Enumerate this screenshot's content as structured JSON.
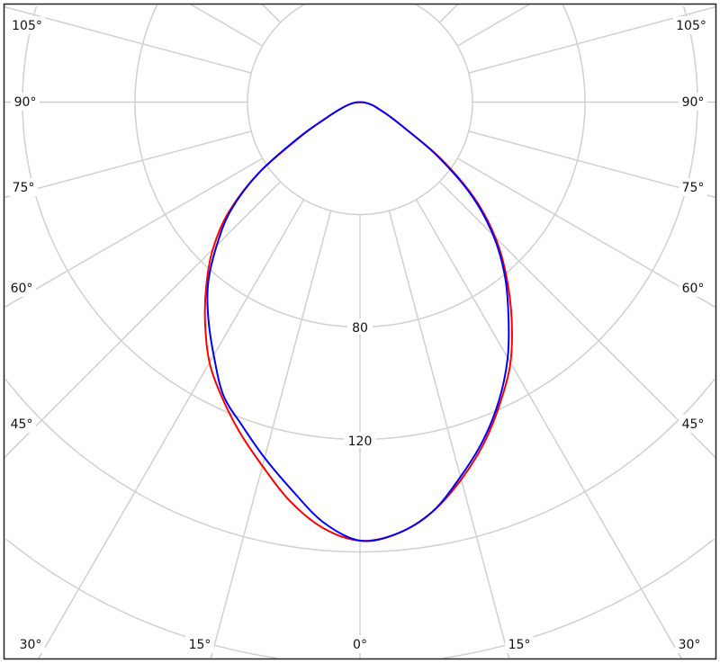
{
  "chart_data": {
    "type": "polar",
    "angle_zero": "bottom",
    "radial_range": [
      0,
      200
    ],
    "radial_ticks": [
      40,
      80,
      120,
      160,
      200
    ],
    "radial_tick_labels": [
      "80",
      "120"
    ],
    "angle_step_deg": 15,
    "grid": true,
    "angle_labels": {
      "left": [
        "105°",
        "90°",
        "75°",
        "60°",
        "45°"
      ],
      "bottom": [
        "30°",
        "15°",
        "0°",
        "15°",
        "30°"
      ],
      "right": [
        "105°",
        "90°",
        "75°",
        "60°",
        "45°"
      ]
    },
    "series": [
      {
        "color": "#ff0000",
        "angles": [
          -90,
          -85,
          -80,
          -75,
          -70,
          -65,
          -60,
          -55,
          -50,
          -45,
          -40,
          -35,
          -30,
          -25,
          -20,
          -15,
          -10,
          -5,
          0,
          5,
          10,
          15,
          20,
          25,
          30,
          35,
          40,
          45,
          50,
          55,
          60,
          65,
          70,
          75,
          80,
          85,
          90
        ],
        "values": [
          0,
          1.5,
          3,
          5,
          8,
          13,
          24,
          44,
          61,
          74,
          85,
          96,
          107,
          116,
          125,
          134,
          144,
          152,
          156,
          154,
          148,
          139,
          129,
          118,
          107,
          94,
          81,
          68,
          53,
          35,
          18,
          11,
          7,
          5,
          3,
          1.5,
          0
        ]
      },
      {
        "color": "#0000ff",
        "angles": [
          -90,
          -85,
          -80,
          -75,
          -70,
          -65,
          -60,
          -55,
          -50,
          -45,
          -40,
          -35,
          -30,
          -25,
          -20,
          -15,
          -10,
          -5,
          0,
          5,
          10,
          15,
          20,
          25,
          30,
          35,
          40,
          45,
          50,
          55,
          60,
          65,
          70,
          75,
          80,
          85,
          90
        ],
        "values": [
          0,
          1.5,
          3,
          5,
          8,
          13,
          25,
          44,
          60,
          72,
          84,
          94,
          104,
          115,
          122.5,
          131,
          140,
          150,
          156,
          154,
          148,
          138,
          128,
          117,
          105,
          92,
          80,
          67,
          52,
          34,
          18,
          11,
          7,
          5,
          3,
          1.5,
          0
        ]
      }
    ]
  }
}
